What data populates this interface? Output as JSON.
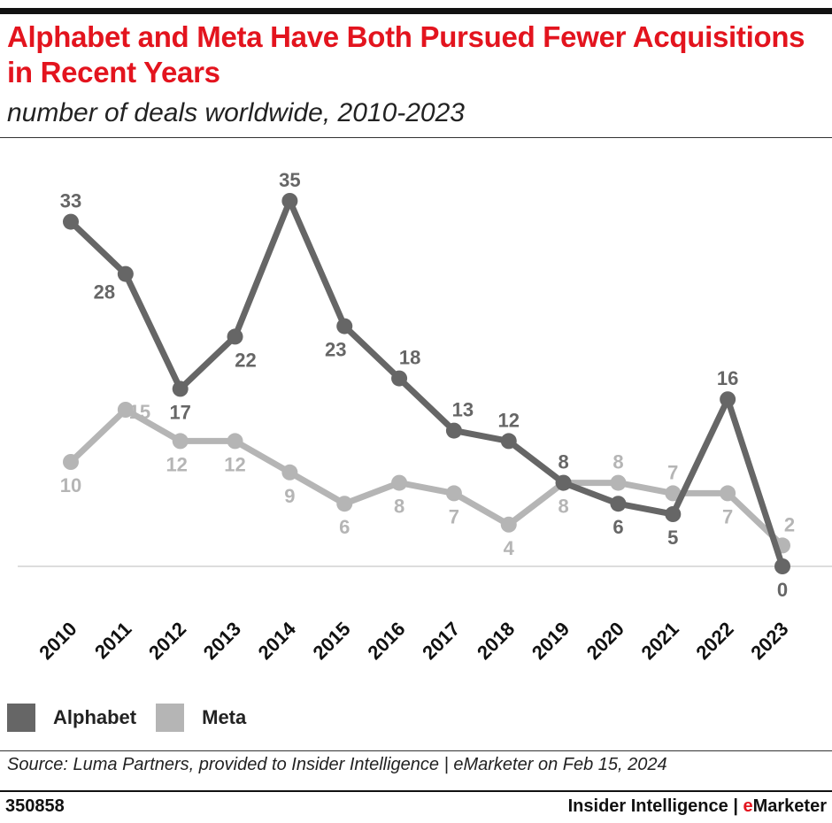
{
  "title": "Alphabet and Meta Have Both Pursued Fewer Acquisitions in Recent Years",
  "subtitle": "number of deals worldwide, 2010-2023",
  "source": "Source: Luma Partners, provided to Insider Intelligence | eMarketer on Feb 15, 2024",
  "chart_id": "350858",
  "brand": {
    "main": "Insider Intelligence | ",
    "accent_letter": "e",
    "rest": "Marketer"
  },
  "colors": {
    "title": "#e3141e",
    "alphabet": "#666666",
    "meta": "#b5b5b5"
  },
  "chart_data": {
    "type": "line",
    "categories": [
      "2010",
      "2011",
      "2012",
      "2013",
      "2014",
      "2015",
      "2016",
      "2017",
      "2018",
      "2019",
      "2020",
      "2021",
      "2022",
      "2023"
    ],
    "series": [
      {
        "name": "Alphabet",
        "values": [
          33,
          28,
          17,
          22,
          35,
          23,
          18,
          13,
          12,
          8,
          6,
          5,
          16,
          0
        ]
      },
      {
        "name": "Meta",
        "values": [
          10,
          15,
          12,
          12,
          9,
          6,
          8,
          7,
          4,
          8,
          8,
          7,
          7,
          2
        ]
      }
    ],
    "ylim": [
      0,
      35
    ],
    "grid": false,
    "data_labels": true,
    "legend": "bottom-left"
  }
}
